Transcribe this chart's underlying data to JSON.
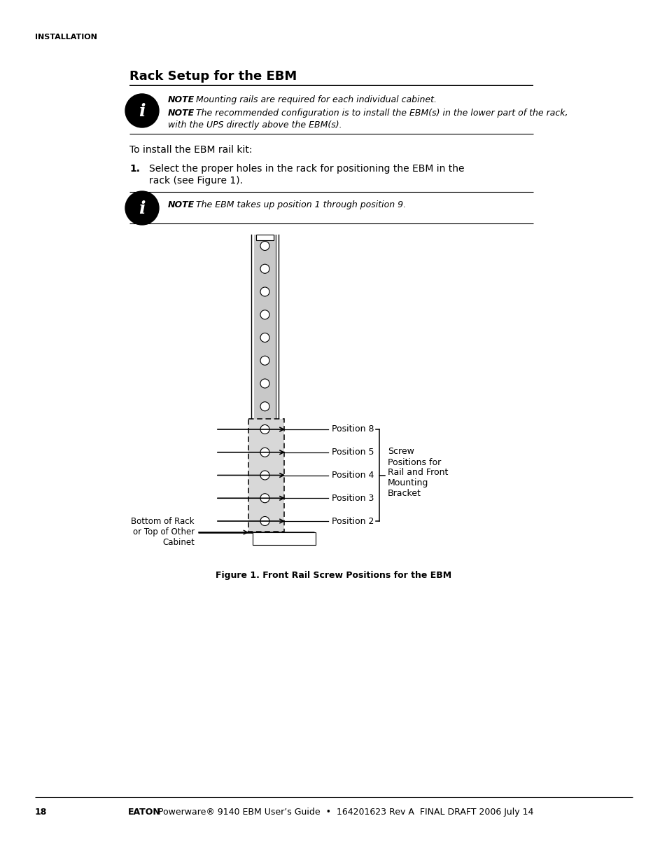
{
  "page_title": "INSTALLATION",
  "section_title": "Rack Setup for the EBM",
  "note1_bold": "NOTE",
  "note1_text": "  Mounting rails are required for each individual cabinet.",
  "note2_bold": "NOTE",
  "note2_line1": "  The recommended configuration is to install the EBM(s) in the lower part of the rack,",
  "note2_line2": "with the UPS directly above the EBM(s).",
  "intro_text": "To install the EBM rail kit:",
  "step1_num": "1.",
  "step1_line1": "Select the proper holes in the rack for positioning the EBM in the",
  "step1_line2": "rack (see Figure 1).",
  "note3_bold": "NOTE",
  "note3_text": "  The EBM takes up position 1 through position 9.",
  "figure_caption": "Figure 1. Front Rail Screw Positions for the EBM",
  "footer_page": "18",
  "footer_bold": "EATON",
  "footer_rest": " Powerware® 9140 EBM User’s Guide  •  164201623 Rev A  FINAL DRAFT 2006 July 14",
  "pos8_label": "Position 8",
  "pos5_label": "Position 5",
  "pos4_label": "Position 4",
  "pos3_label": "Position 3",
  "pos2_label": "Position 2",
  "screw_label": "Screw\nPositions for\nRail and Front\nMounting\nBracket",
  "bottom_label": "Bottom of Rack\nor Top of Other\nCabinet",
  "bg_color": "#ffffff",
  "text_color": "#000000",
  "gray_fill": "#c8c8c8",
  "rail_line_color": "#555555"
}
